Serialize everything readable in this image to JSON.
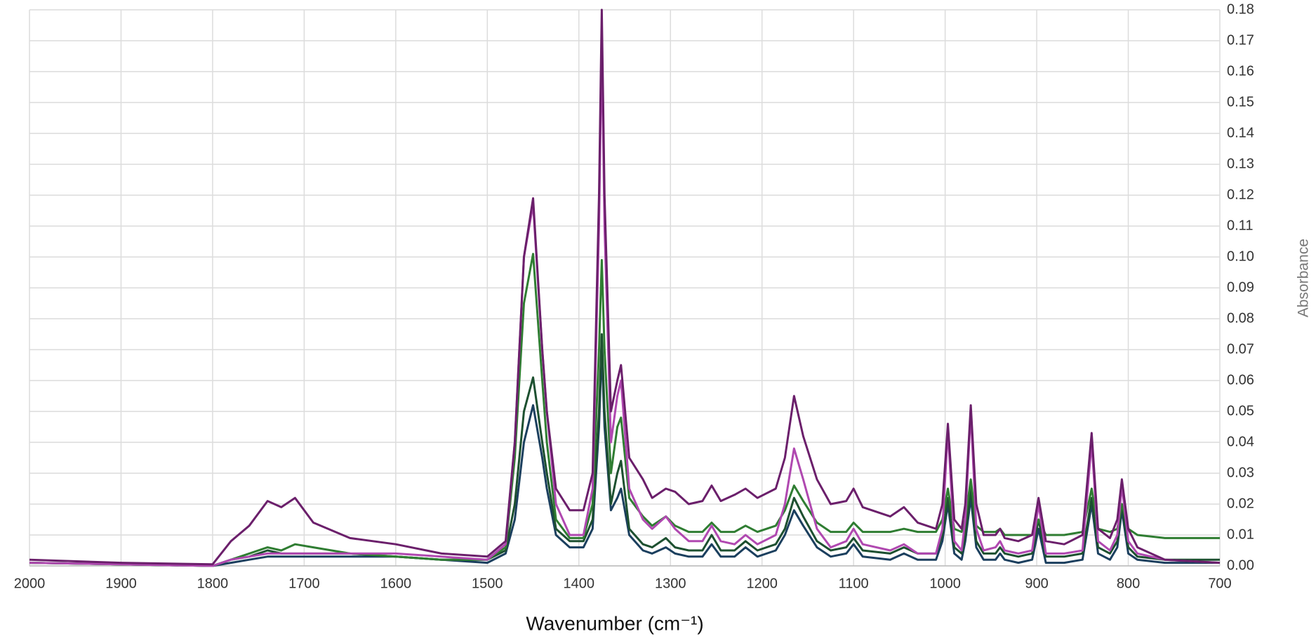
{
  "chart_data": {
    "type": "line",
    "x_label": "Wavenumber (cm⁻¹)",
    "y_label": "Absorbance",
    "xlim": [
      2000,
      700
    ],
    "xticks": [
      2000,
      1900,
      1800,
      1700,
      1600,
      1500,
      1400,
      1300,
      1200,
      1100,
      1000,
      900,
      800,
      700
    ],
    "ylim": [
      0,
      0.18
    ],
    "yticks": [
      {
        "value": 0,
        "label": "0.00"
      },
      0.01,
      0.02,
      0.03,
      0.04,
      0.05,
      0.06,
      0.07,
      0.08,
      0.09,
      {
        "value": 0.1,
        "label": "0.10"
      },
      0.11,
      0.12,
      0.13,
      0.14,
      0.15,
      0.16,
      0.17,
      0.18
    ],
    "grid": true,
    "x": [
      2000,
      1900,
      1800,
      1780,
      1760,
      1740,
      1725,
      1710,
      1690,
      1650,
      1600,
      1550,
      1500,
      1480,
      1470,
      1460,
      1450,
      1440,
      1435,
      1425,
      1410,
      1395,
      1385,
      1378,
      1375,
      1372,
      1365,
      1358,
      1354,
      1345,
      1330,
      1320,
      1305,
      1295,
      1280,
      1265,
      1255,
      1245,
      1230,
      1218,
      1205,
      1185,
      1175,
      1165,
      1155,
      1140,
      1125,
      1108,
      1100,
      1090,
      1060,
      1045,
      1030,
      1010,
      1003,
      997,
      990,
      982,
      978,
      972,
      966,
      958,
      945,
      940,
      935,
      920,
      905,
      898,
      890,
      870,
      850,
      840,
      833,
      820,
      812,
      807,
      800,
      790,
      760,
      700
    ],
    "series": [
      {
        "color": "#1b3f5e",
        "values": [
          0.001,
          0.0005,
          0,
          0.001,
          0.002,
          0.003,
          0.003,
          0.003,
          0.003,
          0.003,
          0.003,
          0.002,
          0.001,
          0.004,
          0.015,
          0.04,
          0.052,
          0.035,
          0.025,
          0.01,
          0.006,
          0.006,
          0.012,
          0.045,
          0.07,
          0.045,
          0.018,
          0.022,
          0.025,
          0.01,
          0.005,
          0.004,
          0.006,
          0.004,
          0.003,
          0.003,
          0.007,
          0.003,
          0.003,
          0.006,
          0.003,
          0.005,
          0.01,
          0.018,
          0.013,
          0.006,
          0.003,
          0.004,
          0.007,
          0.003,
          0.002,
          0.004,
          0.002,
          0.002,
          0.008,
          0.02,
          0.004,
          0.002,
          0.008,
          0.022,
          0.006,
          0.002,
          0.002,
          0.004,
          0.002,
          0.001,
          0.002,
          0.012,
          0.001,
          0.001,
          0.002,
          0.02,
          0.004,
          0.002,
          0.006,
          0.018,
          0.004,
          0.002,
          0.001,
          0.001
        ]
      },
      {
        "color": "#1d5030",
        "values": [
          0.001,
          0.0005,
          0,
          0.002,
          0.003,
          0.005,
          0.004,
          0.004,
          0.004,
          0.004,
          0.003,
          0.002,
          0.002,
          0.005,
          0.02,
          0.05,
          0.061,
          0.04,
          0.03,
          0.012,
          0.008,
          0.008,
          0.015,
          0.05,
          0.075,
          0.05,
          0.02,
          0.03,
          0.034,
          0.012,
          0.007,
          0.006,
          0.009,
          0.006,
          0.005,
          0.005,
          0.01,
          0.005,
          0.005,
          0.008,
          0.005,
          0.007,
          0.012,
          0.022,
          0.016,
          0.008,
          0.005,
          0.006,
          0.009,
          0.005,
          0.004,
          0.006,
          0.004,
          0.004,
          0.01,
          0.022,
          0.006,
          0.004,
          0.01,
          0.025,
          0.008,
          0.004,
          0.004,
          0.006,
          0.004,
          0.003,
          0.004,
          0.015,
          0.003,
          0.003,
          0.004,
          0.022,
          0.006,
          0.004,
          0.008,
          0.02,
          0.006,
          0.003,
          0.002,
          0.002
        ]
      },
      {
        "color": "#2f7d32",
        "values": [
          0.001,
          0.0005,
          0,
          0.002,
          0.004,
          0.006,
          0.005,
          0.007,
          0.006,
          0.004,
          0.003,
          0.002,
          0.002,
          0.006,
          0.035,
          0.085,
          0.101,
          0.06,
          0.04,
          0.015,
          0.009,
          0.009,
          0.02,
          0.07,
          0.099,
          0.07,
          0.03,
          0.045,
          0.048,
          0.022,
          0.016,
          0.013,
          0.016,
          0.013,
          0.011,
          0.011,
          0.014,
          0.011,
          0.011,
          0.013,
          0.011,
          0.013,
          0.018,
          0.026,
          0.021,
          0.014,
          0.011,
          0.011,
          0.014,
          0.011,
          0.011,
          0.012,
          0.011,
          0.011,
          0.015,
          0.025,
          0.012,
          0.011,
          0.015,
          0.028,
          0.013,
          0.011,
          0.011,
          0.012,
          0.01,
          0.01,
          0.01,
          0.015,
          0.01,
          0.01,
          0.011,
          0.025,
          0.012,
          0.011,
          0.012,
          0.02,
          0.012,
          0.01,
          0.009,
          0.009
        ]
      },
      {
        "color": "#b048b0",
        "values": [
          0.001,
          0.0005,
          0,
          0.002,
          0.003,
          0.004,
          0.004,
          0.004,
          0.004,
          0.004,
          0.004,
          0.003,
          0.002,
          0.007,
          0.04,
          0.1,
          0.117,
          0.07,
          0.05,
          0.02,
          0.01,
          0.01,
          0.025,
          0.11,
          0.17,
          0.11,
          0.04,
          0.055,
          0.06,
          0.025,
          0.015,
          0.012,
          0.016,
          0.012,
          0.008,
          0.008,
          0.013,
          0.008,
          0.007,
          0.01,
          0.007,
          0.01,
          0.02,
          0.038,
          0.028,
          0.012,
          0.006,
          0.008,
          0.012,
          0.007,
          0.005,
          0.007,
          0.004,
          0.004,
          0.012,
          0.044,
          0.008,
          0.005,
          0.015,
          0.05,
          0.012,
          0.005,
          0.006,
          0.008,
          0.005,
          0.004,
          0.005,
          0.02,
          0.004,
          0.004,
          0.005,
          0.04,
          0.008,
          0.005,
          0.01,
          0.026,
          0.008,
          0.004,
          0.002,
          0.001
        ]
      },
      {
        "color": "#6b1f6b",
        "values": [
          0.002,
          0.001,
          0.0005,
          0.008,
          0.013,
          0.021,
          0.019,
          0.022,
          0.014,
          0.009,
          0.007,
          0.004,
          0.003,
          0.008,
          0.04,
          0.1,
          0.119,
          0.07,
          0.05,
          0.025,
          0.018,
          0.018,
          0.03,
          0.12,
          0.18,
          0.12,
          0.05,
          0.06,
          0.065,
          0.035,
          0.028,
          0.022,
          0.025,
          0.024,
          0.02,
          0.021,
          0.026,
          0.021,
          0.023,
          0.025,
          0.022,
          0.025,
          0.035,
          0.055,
          0.042,
          0.028,
          0.02,
          0.021,
          0.025,
          0.019,
          0.016,
          0.019,
          0.014,
          0.012,
          0.02,
          0.046,
          0.015,
          0.012,
          0.02,
          0.052,
          0.02,
          0.01,
          0.01,
          0.012,
          0.009,
          0.008,
          0.01,
          0.022,
          0.008,
          0.007,
          0.01,
          0.043,
          0.012,
          0.009,
          0.015,
          0.028,
          0.012,
          0.006,
          0.002,
          0.001
        ]
      }
    ]
  }
}
